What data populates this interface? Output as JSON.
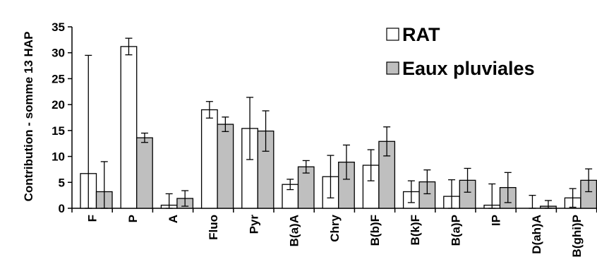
{
  "chart_data": {
    "type": "bar",
    "title": "",
    "xlabel": "",
    "ylabel": "Contribution - somme 13 HAP",
    "ylim": [
      0,
      35
    ],
    "yticks": [
      0,
      5,
      10,
      15,
      20,
      25,
      30,
      35
    ],
    "grid": false,
    "legend_position": "top-right",
    "categories": [
      "F",
      "P",
      "A",
      "Fluo",
      "Pyr",
      "B(a)A",
      "Chry",
      "B(b)F",
      "B(k)F",
      "B(a)P",
      "IP",
      "D(ah)A",
      "B(ghi)P"
    ],
    "series": [
      {
        "name": "RAT",
        "color": "#ffffff",
        "values": [
          6.7,
          31.2,
          0.6,
          19.0,
          15.4,
          4.6,
          6.1,
          8.3,
          3.2,
          2.3,
          0.6,
          0.0,
          2.0
        ],
        "error": [
          22.8,
          1.6,
          2.2,
          1.6,
          6.0,
          1.0,
          4.1,
          3.0,
          2.1,
          3.2,
          4.1,
          2.5,
          1.8
        ]
      },
      {
        "name": "Eaux pluviales",
        "color": "#bfbfbf",
        "values": [
          3.2,
          13.6,
          1.9,
          16.2,
          14.9,
          8.0,
          8.9,
          12.9,
          5.1,
          5.4,
          4.0,
          0.4,
          5.4
        ],
        "error": [
          5.8,
          0.9,
          1.5,
          1.4,
          3.9,
          1.2,
          3.3,
          2.8,
          2.3,
          2.3,
          2.9,
          1.1,
          2.2
        ]
      }
    ]
  }
}
